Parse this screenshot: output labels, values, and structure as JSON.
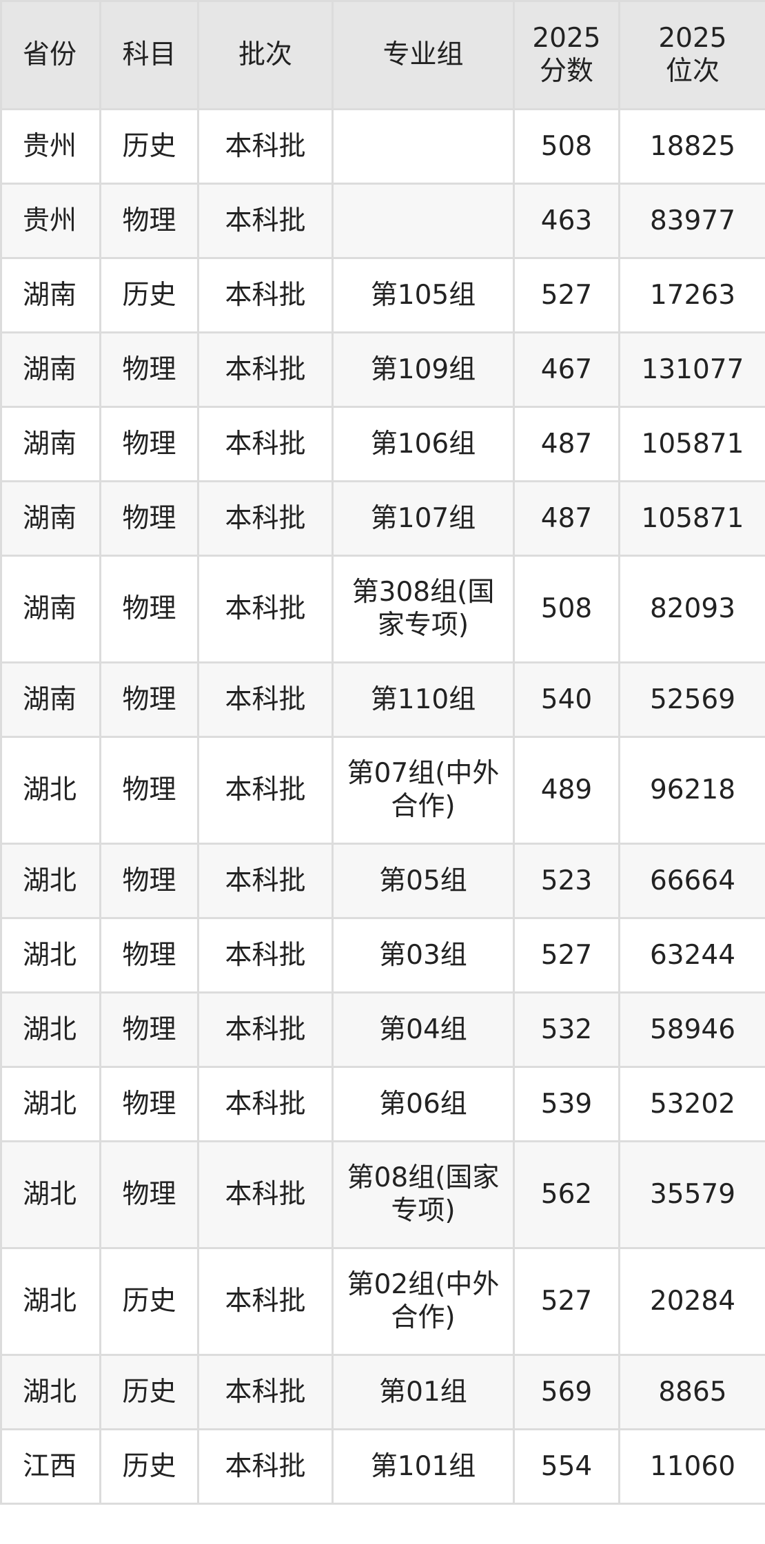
{
  "table": {
    "headers": [
      "省份",
      "科目",
      "批次",
      "专业组",
      "2025分数",
      "2025位次"
    ],
    "header_lines": {
      "score": [
        "2025",
        "分数"
      ],
      "rank": [
        "2025",
        "位次"
      ]
    },
    "rows": [
      {
        "province": "贵州",
        "subject": "历史",
        "batch": "本科批",
        "group": "",
        "score": "508",
        "rank": "18825"
      },
      {
        "province": "贵州",
        "subject": "物理",
        "batch": "本科批",
        "group": "",
        "score": "463",
        "rank": "83977"
      },
      {
        "province": "湖南",
        "subject": "历史",
        "batch": "本科批",
        "group": "第105组",
        "score": "527",
        "rank": "17263"
      },
      {
        "province": "湖南",
        "subject": "物理",
        "batch": "本科批",
        "group": "第109组",
        "score": "467",
        "rank": "131077"
      },
      {
        "province": "湖南",
        "subject": "物理",
        "batch": "本科批",
        "group": "第106组",
        "score": "487",
        "rank": "105871"
      },
      {
        "province": "湖南",
        "subject": "物理",
        "batch": "本科批",
        "group": "第107组",
        "score": "487",
        "rank": "105871"
      },
      {
        "province": "湖南",
        "subject": "物理",
        "batch": "本科批",
        "group": "第308组(国家专项)",
        "score": "508",
        "rank": "82093"
      },
      {
        "province": "湖南",
        "subject": "物理",
        "batch": "本科批",
        "group": "第110组",
        "score": "540",
        "rank": "52569"
      },
      {
        "province": "湖北",
        "subject": "物理",
        "batch": "本科批",
        "group": "第07组(中外合作)",
        "score": "489",
        "rank": "96218"
      },
      {
        "province": "湖北",
        "subject": "物理",
        "batch": "本科批",
        "group": "第05组",
        "score": "523",
        "rank": "66664"
      },
      {
        "province": "湖北",
        "subject": "物理",
        "batch": "本科批",
        "group": "第03组",
        "score": "527",
        "rank": "63244"
      },
      {
        "province": "湖北",
        "subject": "物理",
        "batch": "本科批",
        "group": "第04组",
        "score": "532",
        "rank": "58946"
      },
      {
        "province": "湖北",
        "subject": "物理",
        "batch": "本科批",
        "group": "第06组",
        "score": "539",
        "rank": "53202"
      },
      {
        "province": "湖北",
        "subject": "物理",
        "batch": "本科批",
        "group": "第08组(国家专项)",
        "score": "562",
        "rank": "35579"
      },
      {
        "province": "湖北",
        "subject": "历史",
        "batch": "本科批",
        "group": "第02组(中外合作)",
        "score": "527",
        "rank": "20284"
      },
      {
        "province": "湖北",
        "subject": "历史",
        "batch": "本科批",
        "group": "第01组",
        "score": "569",
        "rank": "8865"
      },
      {
        "province": "江西",
        "subject": "历史",
        "batch": "本科批",
        "group": "第101组",
        "score": "554",
        "rank": "11060"
      }
    ]
  },
  "colors": {
    "header_bg": "#e6e6e6",
    "stripe_bg": "#f7f7f7",
    "border": "#dcdcdc",
    "text": "#222222"
  }
}
